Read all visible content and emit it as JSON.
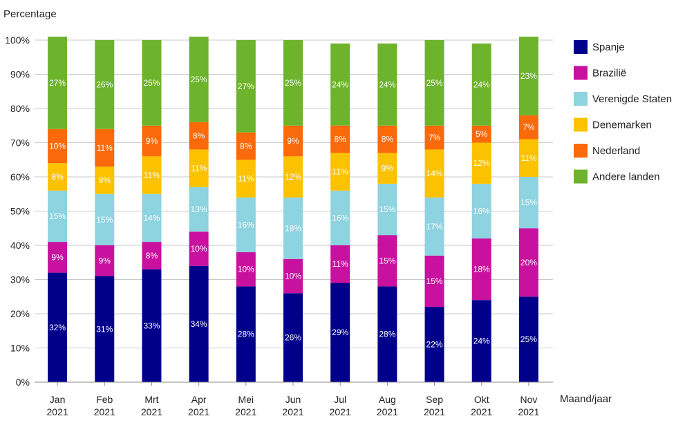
{
  "chart_data": {
    "type": "bar",
    "stacked": true,
    "ylabel": "Percentage",
    "xlabel": "Maand/jaar",
    "ylim": [
      0,
      100
    ],
    "yticks": [
      "0%",
      "10%",
      "20%",
      "30%",
      "40%",
      "50%",
      "60%",
      "70%",
      "80%",
      "90%",
      "100%"
    ],
    "grid": true,
    "legend_position": "right",
    "categories": [
      {
        "month": "Jan",
        "year": "2021"
      },
      {
        "month": "Feb",
        "year": "2021"
      },
      {
        "month": "Mrt",
        "year": "2021"
      },
      {
        "month": "Apr",
        "year": "2021"
      },
      {
        "month": "Mei",
        "year": "2021"
      },
      {
        "month": "Jun",
        "year": "2021"
      },
      {
        "month": "Jul",
        "year": "2021"
      },
      {
        "month": "Aug",
        "year": "2021"
      },
      {
        "month": "Sep",
        "year": "2021"
      },
      {
        "month": "Okt",
        "year": "2021"
      },
      {
        "month": "Nov",
        "year": "2021"
      }
    ],
    "series": [
      {
        "name": "Spanje",
        "color": "#00008b",
        "values": [
          32,
          31,
          33,
          34,
          28,
          26,
          29,
          28,
          22,
          24,
          25
        ]
      },
      {
        "name": "Brazilië",
        "color": "#c8119e",
        "values": [
          9,
          9,
          8,
          10,
          10,
          10,
          11,
          15,
          15,
          18,
          20
        ]
      },
      {
        "name": "Verenigde Staten",
        "color": "#8ed3e0",
        "values": [
          15,
          15,
          14,
          13,
          16,
          18,
          16,
          15,
          17,
          16,
          15
        ]
      },
      {
        "name": "Denemarken",
        "color": "#fcc200",
        "values": [
          8,
          8,
          11,
          11,
          11,
          12,
          11,
          9,
          14,
          12,
          11
        ]
      },
      {
        "name": "Nederland",
        "color": "#fa6a0a",
        "values": [
          10,
          11,
          9,
          8,
          8,
          9,
          8,
          8,
          7,
          5,
          7
        ]
      },
      {
        "name": "Andere landen",
        "color": "#6db32c",
        "values": [
          27,
          26,
          25,
          25,
          27,
          25,
          24,
          24,
          25,
          24,
          23
        ]
      }
    ]
  }
}
